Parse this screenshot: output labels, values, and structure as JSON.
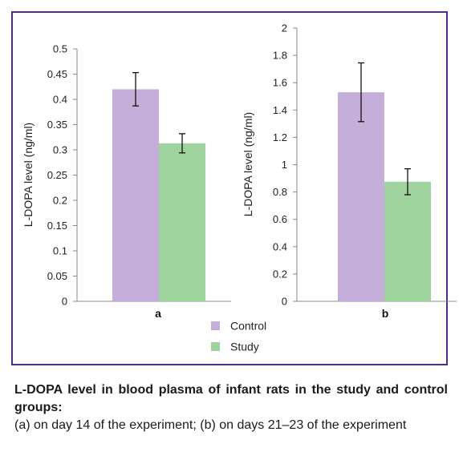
{
  "caption": {
    "title": "L-DOPA level in blood plasma of infant rats in the study and control groups:",
    "description": "(a) on day 14 of the experiment; (b) on days 21–23 of the experiment"
  },
  "legend": {
    "placement": "bottom-center",
    "items": [
      {
        "label": "Control",
        "color": "#c6aedb"
      },
      {
        "label": "Study",
        "color": "#9fd39e"
      }
    ]
  },
  "chart_data": [
    {
      "type": "bar",
      "categories": [
        "a"
      ],
      "ylabel": "L-DOPA level (ng/ml)",
      "ylim": [
        0,
        0.5
      ],
      "yticks": [
        "0",
        "0.05",
        "0.1",
        "0.15",
        "0.2",
        "0.25",
        "0.3",
        "0.35",
        "0.4",
        "0.45",
        "0.5"
      ],
      "grid": false,
      "series": [
        {
          "name": "Control",
          "color": "#c6aedb",
          "values": [
            0.42
          ],
          "error": [
            0.033
          ]
        },
        {
          "name": "Study",
          "color": "#9fd39e",
          "values": [
            0.313
          ],
          "error": [
            0.019
          ]
        }
      ]
    },
    {
      "type": "bar",
      "categories": [
        "b"
      ],
      "ylabel": "L-DOPA level (ng/ml)",
      "ylim": [
        0,
        2
      ],
      "yticks": [
        "0",
        "0.2",
        "0.4",
        "0.6",
        "0.8",
        "1",
        "1.2",
        "1.4",
        "1.6",
        "1.8",
        "2"
      ],
      "grid": false,
      "series": [
        {
          "name": "Control",
          "color": "#c6aedb",
          "values": [
            1.53
          ],
          "error": [
            0.215
          ]
        },
        {
          "name": "Study",
          "color": "#9fd39e",
          "values": [
            0.875
          ],
          "error": [
            0.095
          ]
        }
      ]
    }
  ]
}
